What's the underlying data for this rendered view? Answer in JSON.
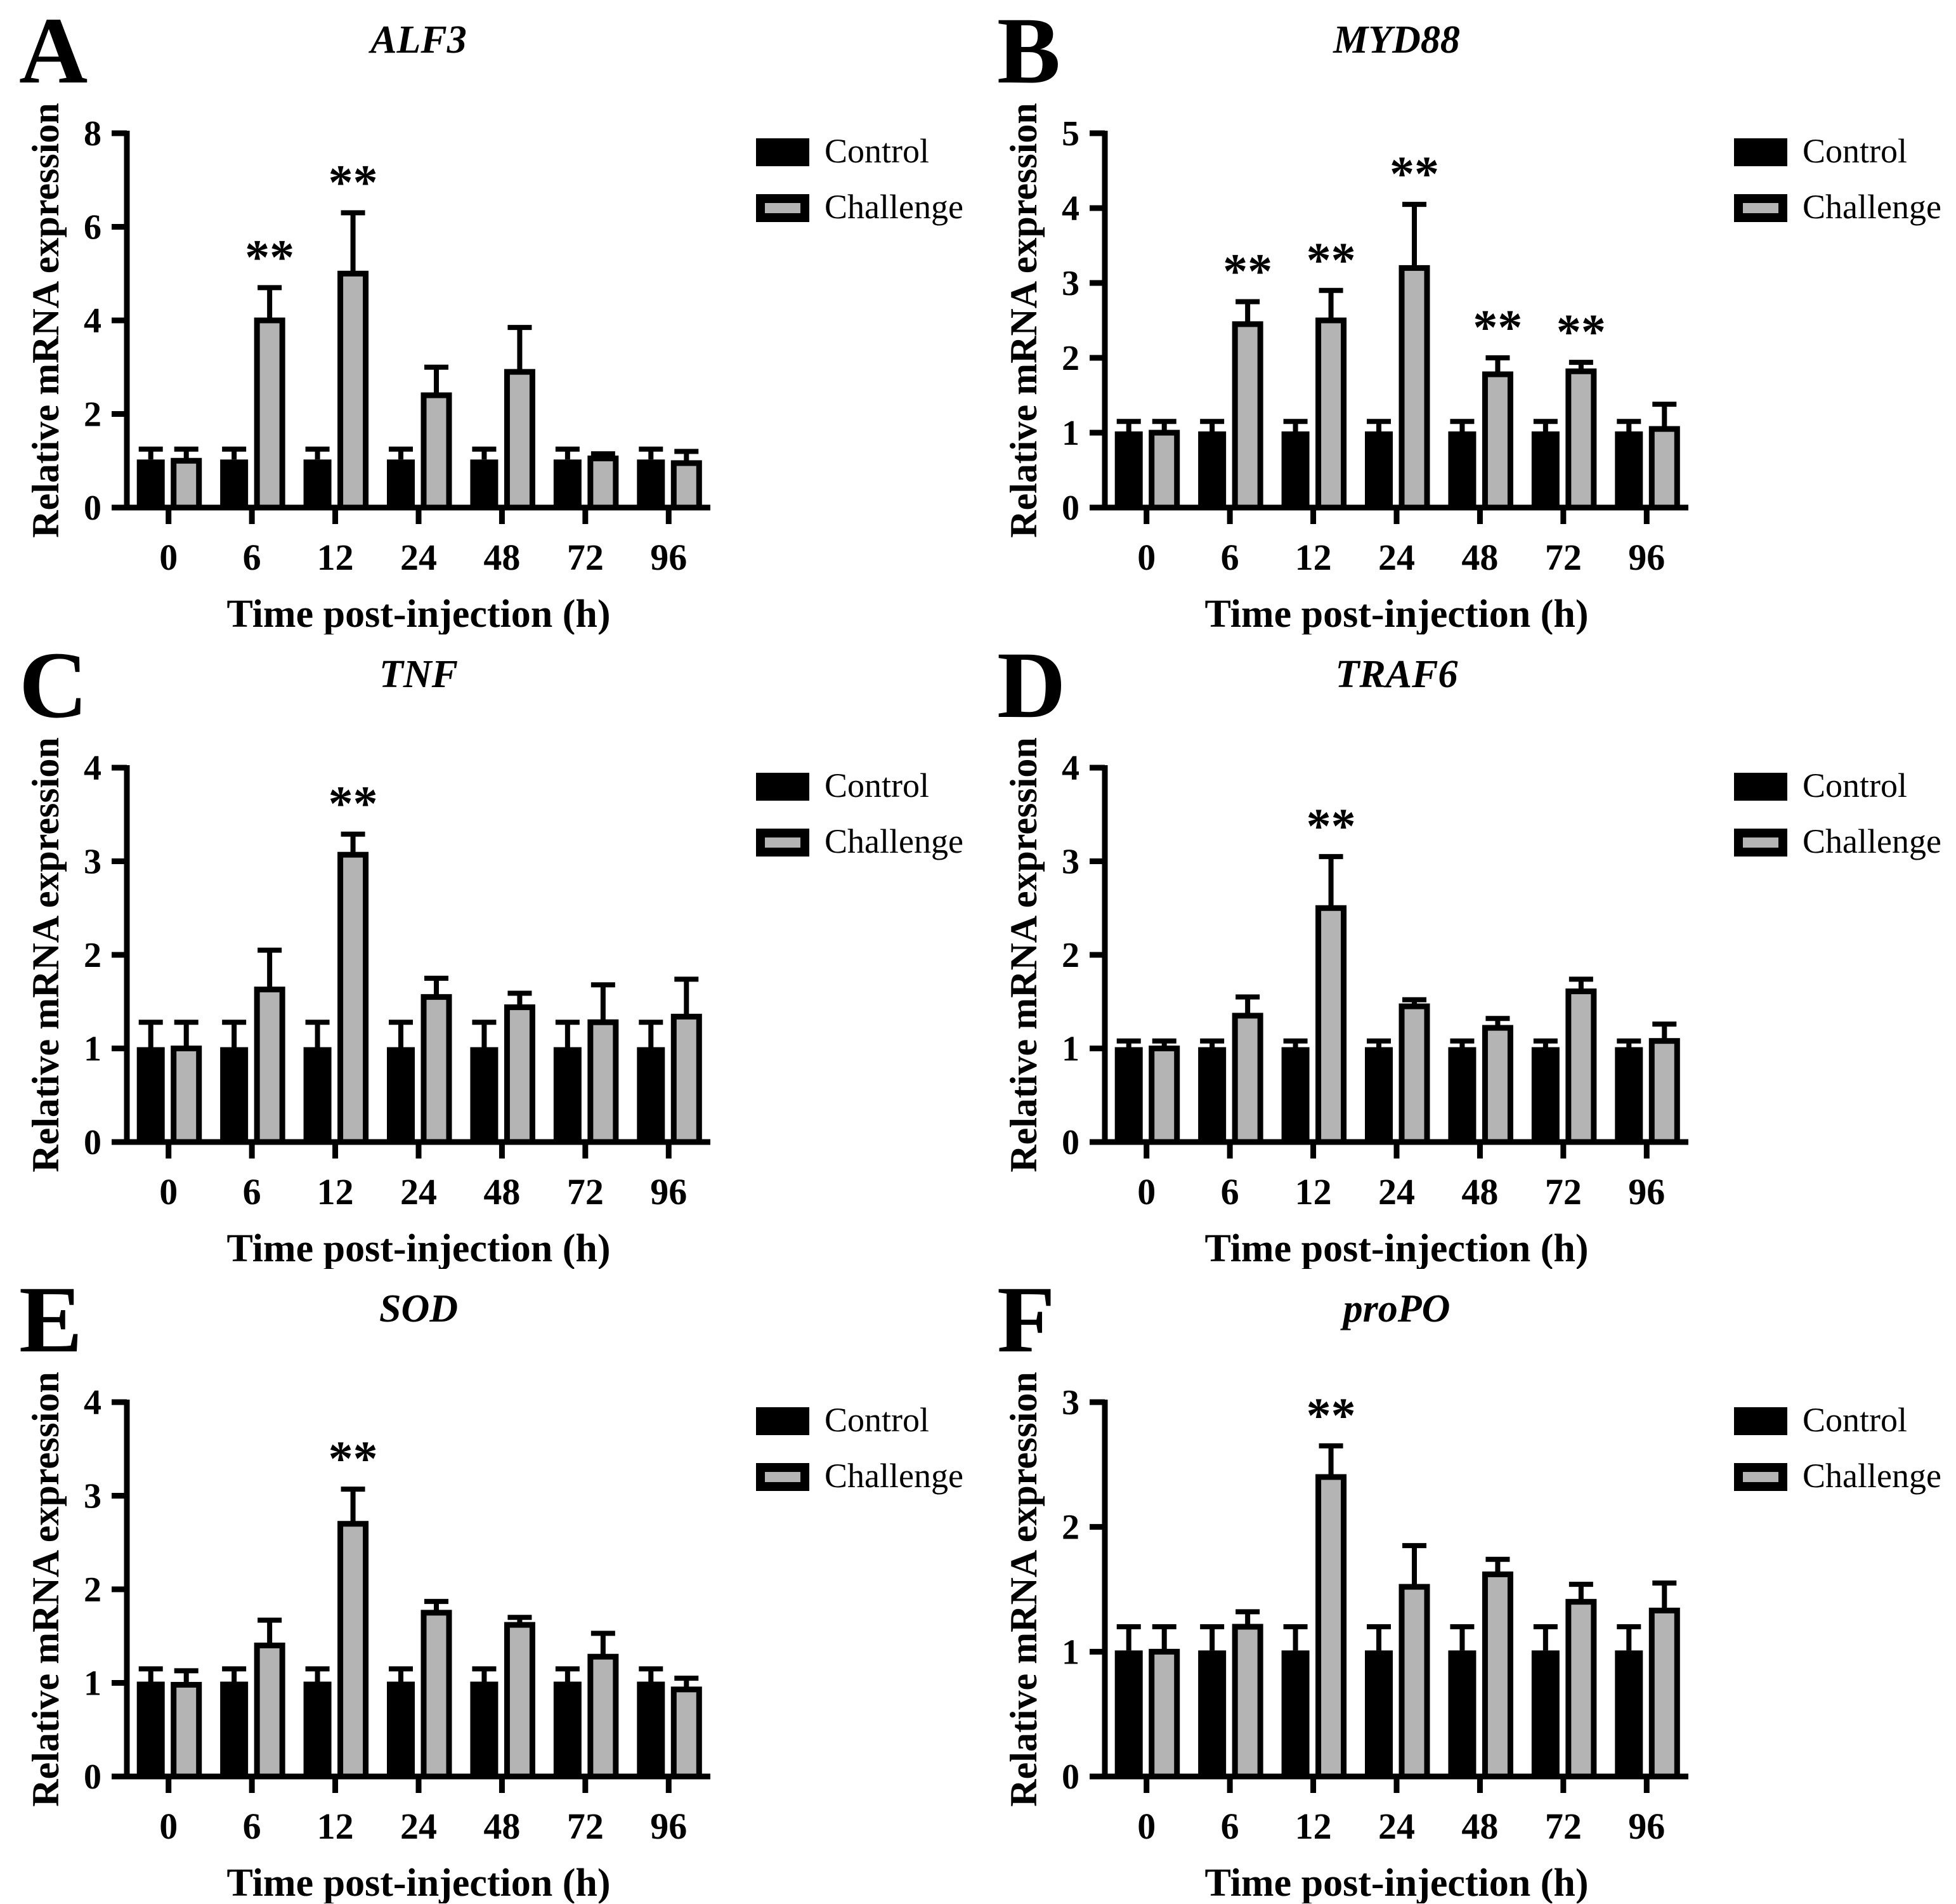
{
  "shared": {
    "significance_marker": "**",
    "colors": {
      "control_fill": "#000000",
      "challenge_fill": "#b4b4b4",
      "outline": "#000000",
      "background": "#ffffff"
    },
    "legend_labels": [
      "Control",
      "Challenge"
    ]
  },
  "chart_data": [
    {
      "type": "bar",
      "panel": "A",
      "title": "ALF3",
      "xlabel": "Time post-injection (h)",
      "ylabel": "Relative mRNA expression",
      "categories": [
        "0",
        "6",
        "12",
        "24",
        "48",
        "72",
        "96"
      ],
      "ylim": [
        0,
        8
      ],
      "ytick_step": 2,
      "grid": false,
      "legend_position": "right",
      "series": [
        {
          "name": "Control",
          "values": [
            1.0,
            1.0,
            1.0,
            1.0,
            1.0,
            1.0,
            1.0
          ],
          "errors": [
            0.25,
            0.25,
            0.25,
            0.25,
            0.25,
            0.25,
            0.25
          ]
        },
        {
          "name": "Challenge",
          "values": [
            1.0,
            4.0,
            5.0,
            2.4,
            2.9,
            1.05,
            0.95
          ],
          "errors": [
            0.25,
            0.7,
            1.3,
            0.6,
            0.95,
            0.1,
            0.25
          ]
        }
      ],
      "significant": [
        "6",
        "12"
      ]
    },
    {
      "type": "bar",
      "panel": "B",
      "title": "MYD88",
      "xlabel": "Time post-injection (h)",
      "ylabel": "Relative mRNA expression",
      "categories": [
        "0",
        "6",
        "12",
        "24",
        "48",
        "72",
        "96"
      ],
      "ylim": [
        0,
        5
      ],
      "ytick_step": 1,
      "grid": false,
      "legend_position": "right",
      "series": [
        {
          "name": "Control",
          "values": [
            1.0,
            1.0,
            1.0,
            1.0,
            1.0,
            1.0,
            1.0
          ],
          "errors": [
            0.15,
            0.15,
            0.15,
            0.15,
            0.15,
            0.15,
            0.15
          ]
        },
        {
          "name": "Challenge",
          "values": [
            1.0,
            2.45,
            2.5,
            3.2,
            1.78,
            1.82,
            1.05
          ],
          "errors": [
            0.15,
            0.3,
            0.4,
            0.85,
            0.22,
            0.12,
            0.33
          ]
        }
      ],
      "significant": [
        "6",
        "12",
        "24",
        "48",
        "72"
      ]
    },
    {
      "type": "bar",
      "panel": "C",
      "title": "TNF",
      "xlabel": "Time post-injection (h)",
      "ylabel": "Relative mRNA expression",
      "categories": [
        "0",
        "6",
        "12",
        "24",
        "48",
        "72",
        "96"
      ],
      "ylim": [
        0,
        4
      ],
      "ytick_step": 1,
      "grid": false,
      "legend_position": "right",
      "series": [
        {
          "name": "Control",
          "values": [
            1.0,
            1.0,
            1.0,
            1.0,
            1.0,
            1.0,
            1.0
          ],
          "errors": [
            0.28,
            0.28,
            0.28,
            0.28,
            0.28,
            0.28,
            0.28
          ]
        },
        {
          "name": "Challenge",
          "values": [
            1.0,
            1.63,
            3.07,
            1.55,
            1.44,
            1.28,
            1.34
          ],
          "errors": [
            0.28,
            0.42,
            0.22,
            0.2,
            0.15,
            0.4,
            0.4
          ]
        }
      ],
      "significant": [
        "12"
      ]
    },
    {
      "type": "bar",
      "panel": "D",
      "title": "TRAF6",
      "xlabel": "Time post-injection (h)",
      "ylabel": "Relative mRNA expression",
      "categories": [
        "0",
        "6",
        "12",
        "24",
        "48",
        "72",
        "96"
      ],
      "ylim": [
        0,
        4
      ],
      "ytick_step": 1,
      "grid": false,
      "legend_position": "right",
      "series": [
        {
          "name": "Control",
          "values": [
            1.0,
            1.0,
            1.0,
            1.0,
            1.0,
            1.0,
            1.0
          ],
          "errors": [
            0.08,
            0.08,
            0.08,
            0.08,
            0.08,
            0.08,
            0.08
          ]
        },
        {
          "name": "Challenge",
          "values": [
            1.0,
            1.35,
            2.5,
            1.45,
            1.22,
            1.61,
            1.08
          ],
          "errors": [
            0.08,
            0.2,
            0.55,
            0.07,
            0.1,
            0.13,
            0.18
          ]
        }
      ],
      "significant": [
        "12"
      ]
    },
    {
      "type": "bar",
      "panel": "E",
      "title": "SOD",
      "xlabel": "Time post-injection (h)",
      "ylabel": "Relative mRNA expression",
      "categories": [
        "0",
        "6",
        "12",
        "24",
        "48",
        "72",
        "96"
      ],
      "ylim": [
        0,
        4
      ],
      "ytick_step": 1,
      "grid": false,
      "legend_position": "right",
      "series": [
        {
          "name": "Control",
          "values": [
            1.0,
            1.0,
            1.0,
            1.0,
            1.0,
            1.0,
            1.0
          ],
          "errors": [
            0.15,
            0.15,
            0.15,
            0.15,
            0.15,
            0.15,
            0.15
          ]
        },
        {
          "name": "Challenge",
          "values": [
            0.98,
            1.4,
            2.7,
            1.75,
            1.62,
            1.28,
            0.93
          ],
          "errors": [
            0.15,
            0.27,
            0.37,
            0.12,
            0.08,
            0.25,
            0.12
          ]
        }
      ],
      "significant": [
        "12"
      ]
    },
    {
      "type": "bar",
      "panel": "F",
      "title": "proPO",
      "xlabel": "Time post-injection (h)",
      "ylabel": "Relative mRNA expression",
      "categories": [
        "0",
        "6",
        "12",
        "24",
        "48",
        "72",
        "96"
      ],
      "ylim": [
        0,
        3
      ],
      "ytick_step": 1,
      "grid": false,
      "legend_position": "right",
      "series": [
        {
          "name": "Control",
          "values": [
            1.0,
            1.0,
            1.0,
            1.0,
            1.0,
            1.0,
            1.0
          ],
          "errors": [
            0.2,
            0.2,
            0.2,
            0.2,
            0.2,
            0.2,
            0.2
          ]
        },
        {
          "name": "Challenge",
          "values": [
            1.0,
            1.2,
            2.4,
            1.52,
            1.62,
            1.4,
            1.33
          ],
          "errors": [
            0.2,
            0.12,
            0.25,
            0.33,
            0.12,
            0.14,
            0.22
          ]
        }
      ],
      "significant": [
        "12"
      ]
    }
  ]
}
